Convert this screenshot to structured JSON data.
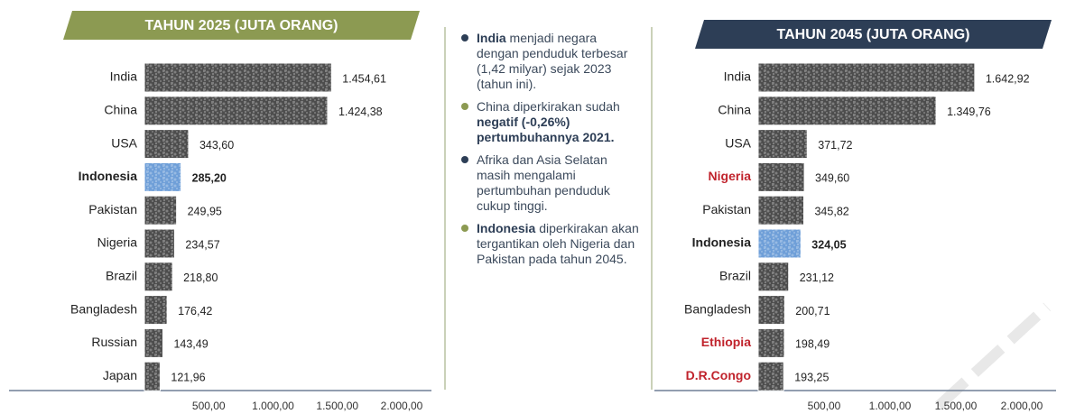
{
  "chart_data": [
    {
      "type": "bar",
      "orientation": "horizontal",
      "title": "TAHUN 2025 (JUTA ORANG)",
      "title_color": "#8c9a52",
      "categories": [
        "India",
        "China",
        "USA",
        "Indonesia",
        "Pakistan",
        "Nigeria",
        "Brazil",
        "Bangladesh",
        "Russian",
        "Japan"
      ],
      "values": [
        1454.61,
        1424.38,
        343.6,
        285.2,
        249.95,
        234.57,
        218.8,
        176.42,
        143.49,
        121.96
      ],
      "value_labels": [
        "1.454,61",
        "1.424,38",
        "343,60",
        "285,20",
        "249,95",
        "234,57",
        "218,80",
        "176,42",
        "143,49",
        "121,96"
      ],
      "bar_colors": [
        "#4d4d4d",
        "#4d4d4d",
        "#4d4d4d",
        "#6f9fd8",
        "#4d4d4d",
        "#4d4d4d",
        "#4d4d4d",
        "#4d4d4d",
        "#4d4d4d",
        "#4d4d4d"
      ],
      "label_colors": [
        "#222222",
        "#222222",
        "#222222",
        "#222222",
        "#222222",
        "#222222",
        "#222222",
        "#222222",
        "#222222",
        "#222222"
      ],
      "bold_labels": [
        false,
        false,
        false,
        true,
        false,
        false,
        false,
        false,
        false,
        false
      ],
      "xlim": [
        0,
        2000
      ],
      "xticks": [
        {
          "value": 500,
          "label": "500,00"
        },
        {
          "value": 1000,
          "label": "1.000,00"
        },
        {
          "value": 1500,
          "label": "1.500,00"
        },
        {
          "value": 2000,
          "label": "2.000,00"
        }
      ]
    },
    {
      "type": "bar",
      "orientation": "horizontal",
      "title": "TAHUN 2045 (JUTA ORANG)",
      "title_color": "#2d3e56",
      "categories": [
        "India",
        "China",
        "USA",
        "Nigeria",
        "Pakistan",
        "Indonesia",
        "Brazil",
        "Bangladesh",
        "Ethiopia",
        "D.R.Congo"
      ],
      "values": [
        1642.92,
        1349.76,
        371.72,
        349.6,
        345.82,
        324.05,
        231.12,
        200.71,
        198.49,
        193.25
      ],
      "value_labels": [
        "1.642,92",
        "1.349,76",
        "371,72",
        "349,60",
        "345,82",
        "324,05",
        "231,12",
        "200,71",
        "198,49",
        "193,25"
      ],
      "bar_colors": [
        "#4d4d4d",
        "#4d4d4d",
        "#4d4d4d",
        "#4d4d4d",
        "#4d4d4d",
        "#6f9fd8",
        "#4d4d4d",
        "#4d4d4d",
        "#4d4d4d",
        "#4d4d4d"
      ],
      "label_colors": [
        "#222222",
        "#222222",
        "#222222",
        "#c0232c",
        "#222222",
        "#222222",
        "#222222",
        "#222222",
        "#c0232c",
        "#c0232c"
      ],
      "bold_labels": [
        false,
        false,
        false,
        true,
        false,
        true,
        false,
        false,
        true,
        true
      ],
      "xlim": [
        0,
        2000
      ],
      "xticks": [
        {
          "value": 500,
          "label": "500,00"
        },
        {
          "value": 1000,
          "label": "1.000,00"
        },
        {
          "value": 1500,
          "label": "1.500,00"
        },
        {
          "value": 2000,
          "label": "2.000,00"
        }
      ]
    }
  ],
  "notes": [
    {
      "color": "#2d3e56",
      "parts": [
        {
          "text": "India",
          "bold": true
        },
        {
          "text": " menjadi negara dengan penduduk terbesar (1,42 milyar) sejak 2023 (tahun ini).",
          "bold": false
        }
      ]
    },
    {
      "color": "#8c9a52",
      "parts": [
        {
          "text": "China diperkirakan sudah ",
          "bold": false
        },
        {
          "text": "negatif (-0,26%) pertumbuhannya 2021.",
          "bold": true
        }
      ]
    },
    {
      "color": "#2d3e56",
      "parts": [
        {
          "text": "Afrika dan Asia Selatan masih mengalami pertumbuhan penduduk cukup tinggi.",
          "bold": false
        }
      ]
    },
    {
      "color": "#8c9a52",
      "parts": [
        {
          "text": "Indonesia",
          "bold": true
        },
        {
          "text": " diperkirakan akan tergantikan oleh Nigeria dan Pakistan pada tahun 2045.",
          "bold": false
        }
      ]
    }
  ]
}
